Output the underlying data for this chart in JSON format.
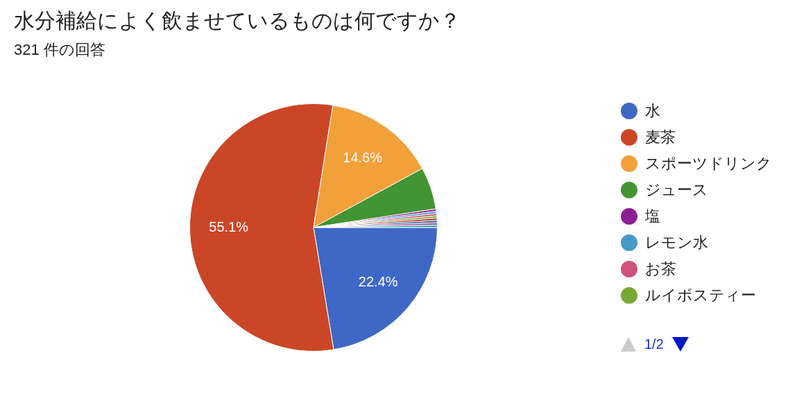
{
  "chart_data": {
    "type": "pie",
    "title": "水分補給によく飲ませているものは何ですか？",
    "subtitle": "321 件の回答",
    "categories": [
      "水",
      "麦茶",
      "スポーツドリンク",
      "ジュース",
      "塩",
      "レモン水",
      "お茶",
      "ルイボスティー",
      null,
      null,
      null,
      null
    ],
    "values": [
      22.4,
      55.1,
      14.6,
      5.5,
      0.3,
      0.3,
      0.3,
      0.3,
      0.3,
      0.3,
      0.3,
      0.3
    ],
    "colors": [
      "#3f67c6",
      "#cb4627",
      "#f2a03a",
      "#439433",
      "#8d1f95",
      "#4499c6",
      "#cf5279",
      "#78a935",
      "#b52e2e",
      "#33639a",
      "#944b9a",
      "#2aa399"
    ],
    "value_labels": [
      "22.4%",
      "55.1%",
      "14.6%",
      null,
      null,
      null,
      null,
      null,
      null,
      null,
      null,
      null
    ],
    "legend": "right",
    "annotations": [
      "1/2"
    ]
  }
}
